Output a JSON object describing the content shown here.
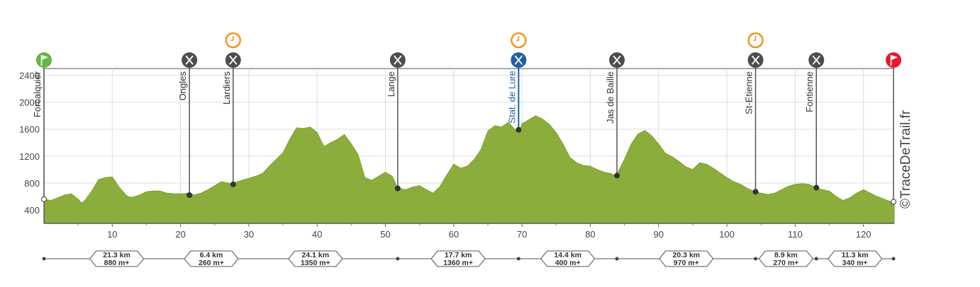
{
  "chart_data": {
    "type": "area",
    "x_ticks": [
      10,
      20,
      30,
      40,
      50,
      60,
      70,
      80,
      90,
      100,
      110,
      120
    ],
    "y_ticks": [
      400,
      800,
      1200,
      1600,
      2000,
      2400
    ],
    "xlim": [
      0,
      124.5
    ],
    "ylim": [
      200,
      2500
    ],
    "grid": true,
    "fill_color": "#8cae3c",
    "profile": {
      "x": [
        0,
        1,
        2,
        3,
        4,
        5,
        5.5,
        6,
        7,
        8,
        9,
        10,
        11,
        12,
        12.5,
        13,
        14,
        15,
        16,
        17,
        18,
        19,
        20,
        20.5,
        21,
        21.5,
        22,
        23,
        24,
        25,
        26,
        27,
        27.5,
        28,
        29,
        30,
        31,
        32,
        33,
        34,
        35,
        36,
        37,
        38,
        39,
        40,
        41,
        42,
        43,
        44,
        45,
        46,
        47,
        48,
        49,
        50,
        51,
        51.8,
        52,
        53,
        54,
        55,
        56,
        57,
        58,
        59,
        60,
        61,
        62,
        63,
        64,
        65,
        66,
        67,
        68,
        69,
        69.7,
        70,
        71,
        72,
        73,
        74,
        75,
        76,
        77,
        78,
        79,
        80,
        81,
        82,
        83,
        83.7,
        84,
        85,
        86,
        87,
        88,
        89,
        90,
        91,
        92,
        93,
        94,
        95,
        96,
        97,
        98,
        99,
        100,
        101,
        102,
        103,
        104.1,
        105,
        106,
        107,
        108,
        109,
        110,
        111,
        112,
        112.9,
        113,
        114,
        115,
        116,
        117,
        118,
        119,
        120,
        121,
        122,
        123,
        124,
        124.5
      ],
      "elev": [
        560,
        540,
        580,
        620,
        640,
        560,
        500,
        540,
        680,
        850,
        880,
        890,
        740,
        620,
        590,
        590,
        620,
        670,
        680,
        680,
        650,
        640,
        640,
        640,
        650,
        640,
        620,
        650,
        700,
        760,
        820,
        800,
        780,
        810,
        840,
        870,
        900,
        940,
        1050,
        1150,
        1250,
        1450,
        1620,
        1610,
        1630,
        1550,
        1340,
        1400,
        1450,
        1520,
        1380,
        1220,
        880,
        840,
        900,
        960,
        900,
        720,
        720,
        700,
        740,
        760,
        700,
        650,
        750,
        920,
        1080,
        1020,
        1050,
        1150,
        1300,
        1570,
        1650,
        1630,
        1700,
        1590,
        1590,
        1680,
        1740,
        1800,
        1750,
        1670,
        1550,
        1380,
        1180,
        1100,
        1060,
        1050,
        1000,
        960,
        940,
        910,
        950,
        1150,
        1380,
        1530,
        1580,
        1500,
        1380,
        1240,
        1190,
        1120,
        1040,
        1000,
        1100,
        1080,
        1020,
        950,
        880,
        820,
        780,
        720,
        670,
        650,
        630,
        650,
        700,
        750,
        780,
        790,
        780,
        740,
        730,
        700,
        680,
        600,
        540,
        580,
        650,
        700,
        650,
        600,
        560,
        520,
        520
      ]
    },
    "waypoints": [
      {
        "name": "Forcalquier",
        "km": 0,
        "elev": 560,
        "icon": "start-flag-icon",
        "color": "#62b844",
        "time_marker": false,
        "highlight": false
      },
      {
        "name": "Ongles",
        "km": 21.3,
        "elev": 620,
        "icon": "fork-knife-icon",
        "color": "#4d4d4d",
        "time_marker": false,
        "highlight": false
      },
      {
        "name": "Lardiers",
        "km": 27.7,
        "elev": 780,
        "icon": "fork-knife-icon",
        "color": "#4d4d4d",
        "time_marker": true,
        "highlight": false
      },
      {
        "name": "Lange",
        "km": 51.8,
        "elev": 720,
        "icon": "fork-knife-icon",
        "color": "#4d4d4d",
        "time_marker": false,
        "highlight": false
      },
      {
        "name": "Stat. de Lure",
        "km": 69.5,
        "elev": 1590,
        "icon": "life-base-icon",
        "color": "#1f5fa5",
        "time_marker": true,
        "highlight": true
      },
      {
        "name": "Jas de Baille",
        "km": 83.9,
        "elev": 910,
        "icon": "fork-knife-icon",
        "color": "#4d4d4d",
        "time_marker": false,
        "highlight": false
      },
      {
        "name": "St-Etienne",
        "km": 104.2,
        "elev": 670,
        "icon": "fork-knife-icon",
        "color": "#4d4d4d",
        "time_marker": true,
        "highlight": false
      },
      {
        "name": "Fontienne",
        "km": 113.1,
        "elev": 730,
        "icon": "fork-knife-icon",
        "color": "#4d4d4d",
        "time_marker": false,
        "highlight": false
      },
      {
        "name": "",
        "km": 124.4,
        "elev": 520,
        "icon": "finish-flag-icon",
        "color": "#e8192c",
        "time_marker": false,
        "highlight": false
      }
    ],
    "segments": [
      {
        "distance": "21.3 km",
        "climb": "880 m+"
      },
      {
        "distance": "6.4 km",
        "climb": "260 m+"
      },
      {
        "distance": "24.1 km",
        "climb": "1350 m+"
      },
      {
        "distance": "17.7 km",
        "climb": "1360 m+"
      },
      {
        "distance": "14.4 km",
        "climb": "400 m+"
      },
      {
        "distance": "20.3 km",
        "climb": "970 m+"
      },
      {
        "distance": "8.9 km",
        "climb": "270 m+"
      },
      {
        "distance": "11.3 km",
        "climb": "340 m+"
      }
    ],
    "colors": {
      "time_marker": "#f5951d",
      "grid": "#dddddd",
      "axis_text": "#444444",
      "baseline": "#555555"
    }
  },
  "watermark": "©TraceDeTrail.fr"
}
